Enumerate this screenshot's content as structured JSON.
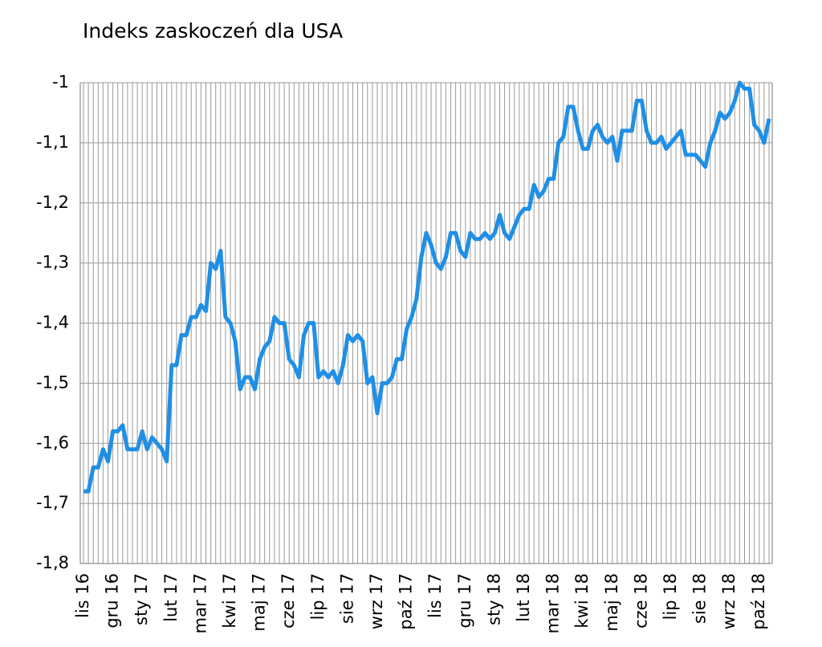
{
  "chart_data": {
    "type": "line",
    "title": "Indeks zaskoczeń dla USA",
    "categories": [
      "lis 16",
      null,
      null,
      null,
      null,
      null,
      "gru 16",
      null,
      null,
      null,
      null,
      null,
      "sty 17",
      null,
      null,
      null,
      null,
      null,
      "lut 17",
      null,
      null,
      null,
      null,
      null,
      "mar 17",
      null,
      null,
      null,
      null,
      null,
      "kwi 17",
      null,
      null,
      null,
      null,
      null,
      "maj 17",
      null,
      null,
      null,
      null,
      null,
      "cze 17",
      null,
      null,
      null,
      null,
      null,
      "lip 17",
      null,
      null,
      null,
      null,
      null,
      "sie 17",
      null,
      null,
      null,
      null,
      null,
      "wrz 17",
      null,
      null,
      null,
      null,
      null,
      "paź 17",
      null,
      null,
      null,
      null,
      null,
      "lis 17",
      null,
      null,
      null,
      null,
      null,
      "gru 17",
      null,
      null,
      null,
      null,
      null,
      "sty 18",
      null,
      null,
      null,
      null,
      null,
      "lut 18",
      null,
      null,
      null,
      null,
      null,
      "mar 18",
      null,
      null,
      null,
      null,
      null,
      "kwi 18",
      null,
      null,
      null,
      null,
      null,
      "maj 18",
      null,
      null,
      null,
      null,
      null,
      "cze 18",
      null,
      null,
      null,
      null,
      null,
      "lip 18",
      null,
      null,
      null,
      null,
      null,
      "sie 18",
      null,
      null,
      null,
      null,
      null,
      "wrz 18",
      null,
      null,
      null,
      null,
      null,
      "paź 18",
      null,
      null
    ],
    "values": [
      -1.68,
      -1.68,
      -1.64,
      -1.64,
      -1.61,
      -1.63,
      -1.58,
      -1.58,
      -1.57,
      -1.61,
      -1.61,
      -1.61,
      -1.58,
      -1.61,
      -1.59,
      -1.6,
      -1.61,
      -1.63,
      -1.47,
      -1.47,
      -1.42,
      -1.42,
      -1.39,
      -1.39,
      -1.37,
      -1.38,
      -1.3,
      -1.31,
      -1.28,
      -1.39,
      -1.4,
      -1.43,
      -1.51,
      -1.49,
      -1.49,
      -1.51,
      -1.46,
      -1.44,
      -1.43,
      -1.39,
      -1.4,
      -1.4,
      -1.46,
      -1.47,
      -1.49,
      -1.42,
      -1.4,
      -1.4,
      -1.49,
      -1.48,
      -1.49,
      -1.48,
      -1.5,
      -1.47,
      -1.42,
      -1.43,
      -1.42,
      -1.43,
      -1.5,
      -1.49,
      -1.55,
      -1.5,
      -1.5,
      -1.49,
      -1.46,
      -1.46,
      -1.41,
      -1.39,
      -1.36,
      -1.29,
      -1.25,
      -1.27,
      -1.3,
      -1.31,
      -1.29,
      -1.25,
      -1.25,
      -1.28,
      -1.29,
      -1.25,
      -1.26,
      -1.26,
      -1.25,
      -1.26,
      -1.25,
      -1.22,
      -1.25,
      -1.26,
      -1.24,
      -1.22,
      -1.21,
      -1.21,
      -1.17,
      -1.19,
      -1.18,
      -1.16,
      -1.16,
      -1.1,
      -1.09,
      -1.04,
      -1.04,
      -1.08,
      -1.11,
      -1.11,
      -1.08,
      -1.07,
      -1.09,
      -1.1,
      -1.09,
      -1.13,
      -1.08,
      -1.08,
      -1.08,
      -1.03,
      -1.03,
      -1.08,
      -1.1,
      -1.1,
      -1.09,
      -1.11,
      -1.1,
      -1.09,
      -1.08,
      -1.12,
      -1.12,
      -1.12,
      -1.13,
      -1.14,
      -1.1,
      -1.08,
      -1.05,
      -1.06,
      -1.05,
      -1.03,
      -1.0,
      -1.01,
      -1.01,
      -1.07,
      -1.08,
      -1.1,
      -1.06
    ],
    "color": "#1f8fe6",
    "ylim": [
      -1.8,
      -1
    ],
    "yticks": [
      {
        "value": -1.8,
        "label": "-1,8"
      },
      {
        "value": -1.7,
        "label": "-1,7"
      },
      {
        "value": -1.6,
        "label": "-1,6"
      },
      {
        "value": -1.5,
        "label": "-1,5"
      },
      {
        "value": -1.4,
        "label": "-1,4"
      },
      {
        "value": -1.3,
        "label": "-1,3"
      },
      {
        "value": -1.2,
        "label": "-1,2"
      },
      {
        "value": -1.1,
        "label": "-1,1"
      },
      -1
    ],
    "grid": true
  }
}
